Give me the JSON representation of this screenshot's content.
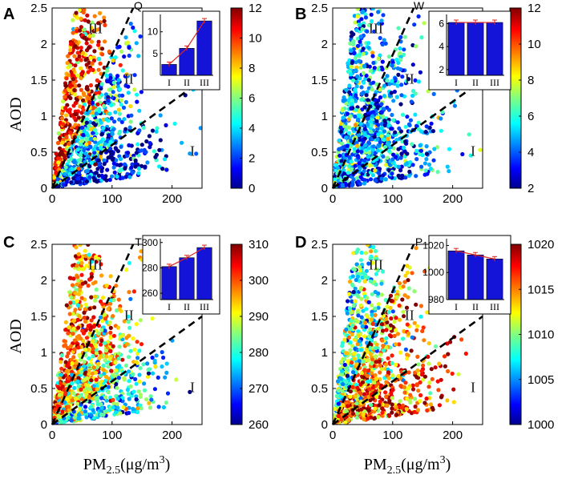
{
  "figure": {
    "x_axis_label": "PM",
    "x_axis_sub": "2.5",
    "x_axis_unit": "(μg/m",
    "x_axis_sup": "3",
    "x_axis_close": ")",
    "y_axis_label": "AOD"
  },
  "chart_data": [
    {
      "type": "scatter",
      "panel_letter": "A",
      "title": "Q",
      "xlim": [
        0,
        250
      ],
      "ylim": [
        0,
        2.5
      ],
      "xticks": [
        0,
        100,
        200
      ],
      "yticks": [
        0,
        0.5,
        1,
        1.5,
        2,
        2.5
      ],
      "colorbar": {
        "min": 0,
        "max": 12,
        "ticks": [
          0,
          2,
          4,
          6,
          8,
          10,
          12
        ],
        "colormap": "jet"
      },
      "region_labels": [
        "I",
        "II",
        "III"
      ],
      "region_lines": [
        {
          "slope": 0.006
        },
        {
          "slope": 0.0185
        }
      ],
      "cluster_color_values": {
        "I": 1.5,
        "II": 3.5,
        "III": 10.5
      },
      "inset": {
        "type": "bar",
        "categories": [
          "I",
          "II",
          "III"
        ],
        "values": [
          2.5,
          6.2,
          12.5
        ],
        "ylim": [
          0,
          14
        ],
        "yticks": [
          5,
          10
        ],
        "line_color": "#e0241b",
        "bar_color": "#1414d8"
      }
    },
    {
      "type": "scatter",
      "panel_letter": "B",
      "title": "W",
      "xlim": [
        0,
        250
      ],
      "ylim": [
        0,
        2.5
      ],
      "xticks": [
        0,
        100,
        200
      ],
      "yticks": [
        0,
        0.5,
        1,
        1.5,
        2,
        2.5
      ],
      "colorbar": {
        "min": 2,
        "max": 12,
        "ticks": [
          2,
          4,
          6,
          8,
          10,
          12
        ],
        "colormap": "jet"
      },
      "region_labels": [
        "I",
        "II",
        "III"
      ],
      "region_lines": [
        {
          "slope": 0.006
        },
        {
          "slope": 0.0185
        }
      ],
      "cluster_color_values": {
        "I": 4.5,
        "II": 4.7,
        "III": 5.0
      },
      "inset": {
        "type": "bar",
        "categories": [
          "I",
          "II",
          "III"
        ],
        "values": [
          6.1,
          6.1,
          6.1
        ],
        "ylim": [
          1.5,
          6.8
        ],
        "yticks": [
          2,
          4,
          6
        ],
        "line_color": "#e0241b",
        "bar_color": "#1414d8"
      }
    },
    {
      "type": "scatter",
      "panel_letter": "C",
      "title": "T",
      "xlim": [
        0,
        250
      ],
      "ylim": [
        0,
        2.5
      ],
      "xticks": [
        0,
        100,
        200
      ],
      "yticks": [
        0,
        0.5,
        1,
        1.5,
        2,
        2.5
      ],
      "colorbar": {
        "min": 260,
        "max": 310,
        "ticks": [
          260,
          270,
          280,
          290,
          300,
          310
        ],
        "colormap": "jet"
      },
      "region_labels": [
        "I",
        "II",
        "III"
      ],
      "region_lines": [
        {
          "slope": 0.006
        },
        {
          "slope": 0.0185
        }
      ],
      "cluster_color_values": {
        "I": 277,
        "II": 290,
        "III": 298
      },
      "inset": {
        "type": "bar",
        "categories": [
          "I",
          "II",
          "III"
        ],
        "values": [
          281,
          288,
          296
        ],
        "ylim": [
          255,
          303
        ],
        "yticks": [
          260,
          280,
          300
        ],
        "line_color": "#e0241b",
        "bar_color": "#1414d8"
      }
    },
    {
      "type": "scatter",
      "panel_letter": "D",
      "title": "P",
      "xlim": [
        0,
        250
      ],
      "ylim": [
        0,
        2.5
      ],
      "xticks": [
        0,
        100,
        200
      ],
      "yticks": [
        0,
        0.5,
        1,
        1.5,
        2,
        2.5
      ],
      "colorbar": {
        "min": 1000,
        "max": 1020,
        "ticks": [
          1000,
          1005,
          1010,
          1015,
          1020
        ],
        "colormap": "jet"
      },
      "region_labels": [
        "I",
        "II",
        "III"
      ],
      "region_lines": [
        {
          "slope": 0.006
        },
        {
          "slope": 0.0185
        }
      ],
      "cluster_color_values": {
        "I": 1017,
        "II": 1015,
        "III": 1009
      },
      "inset": {
        "type": "bar",
        "categories": [
          "I",
          "II",
          "III"
        ],
        "values": [
          1016,
          1013,
          1010
        ],
        "ylim": [
          980,
          1025
        ],
        "yticks": [
          980,
          1000,
          1020
        ],
        "line_color": "#e0241b",
        "bar_color": "#1414d8"
      }
    }
  ]
}
